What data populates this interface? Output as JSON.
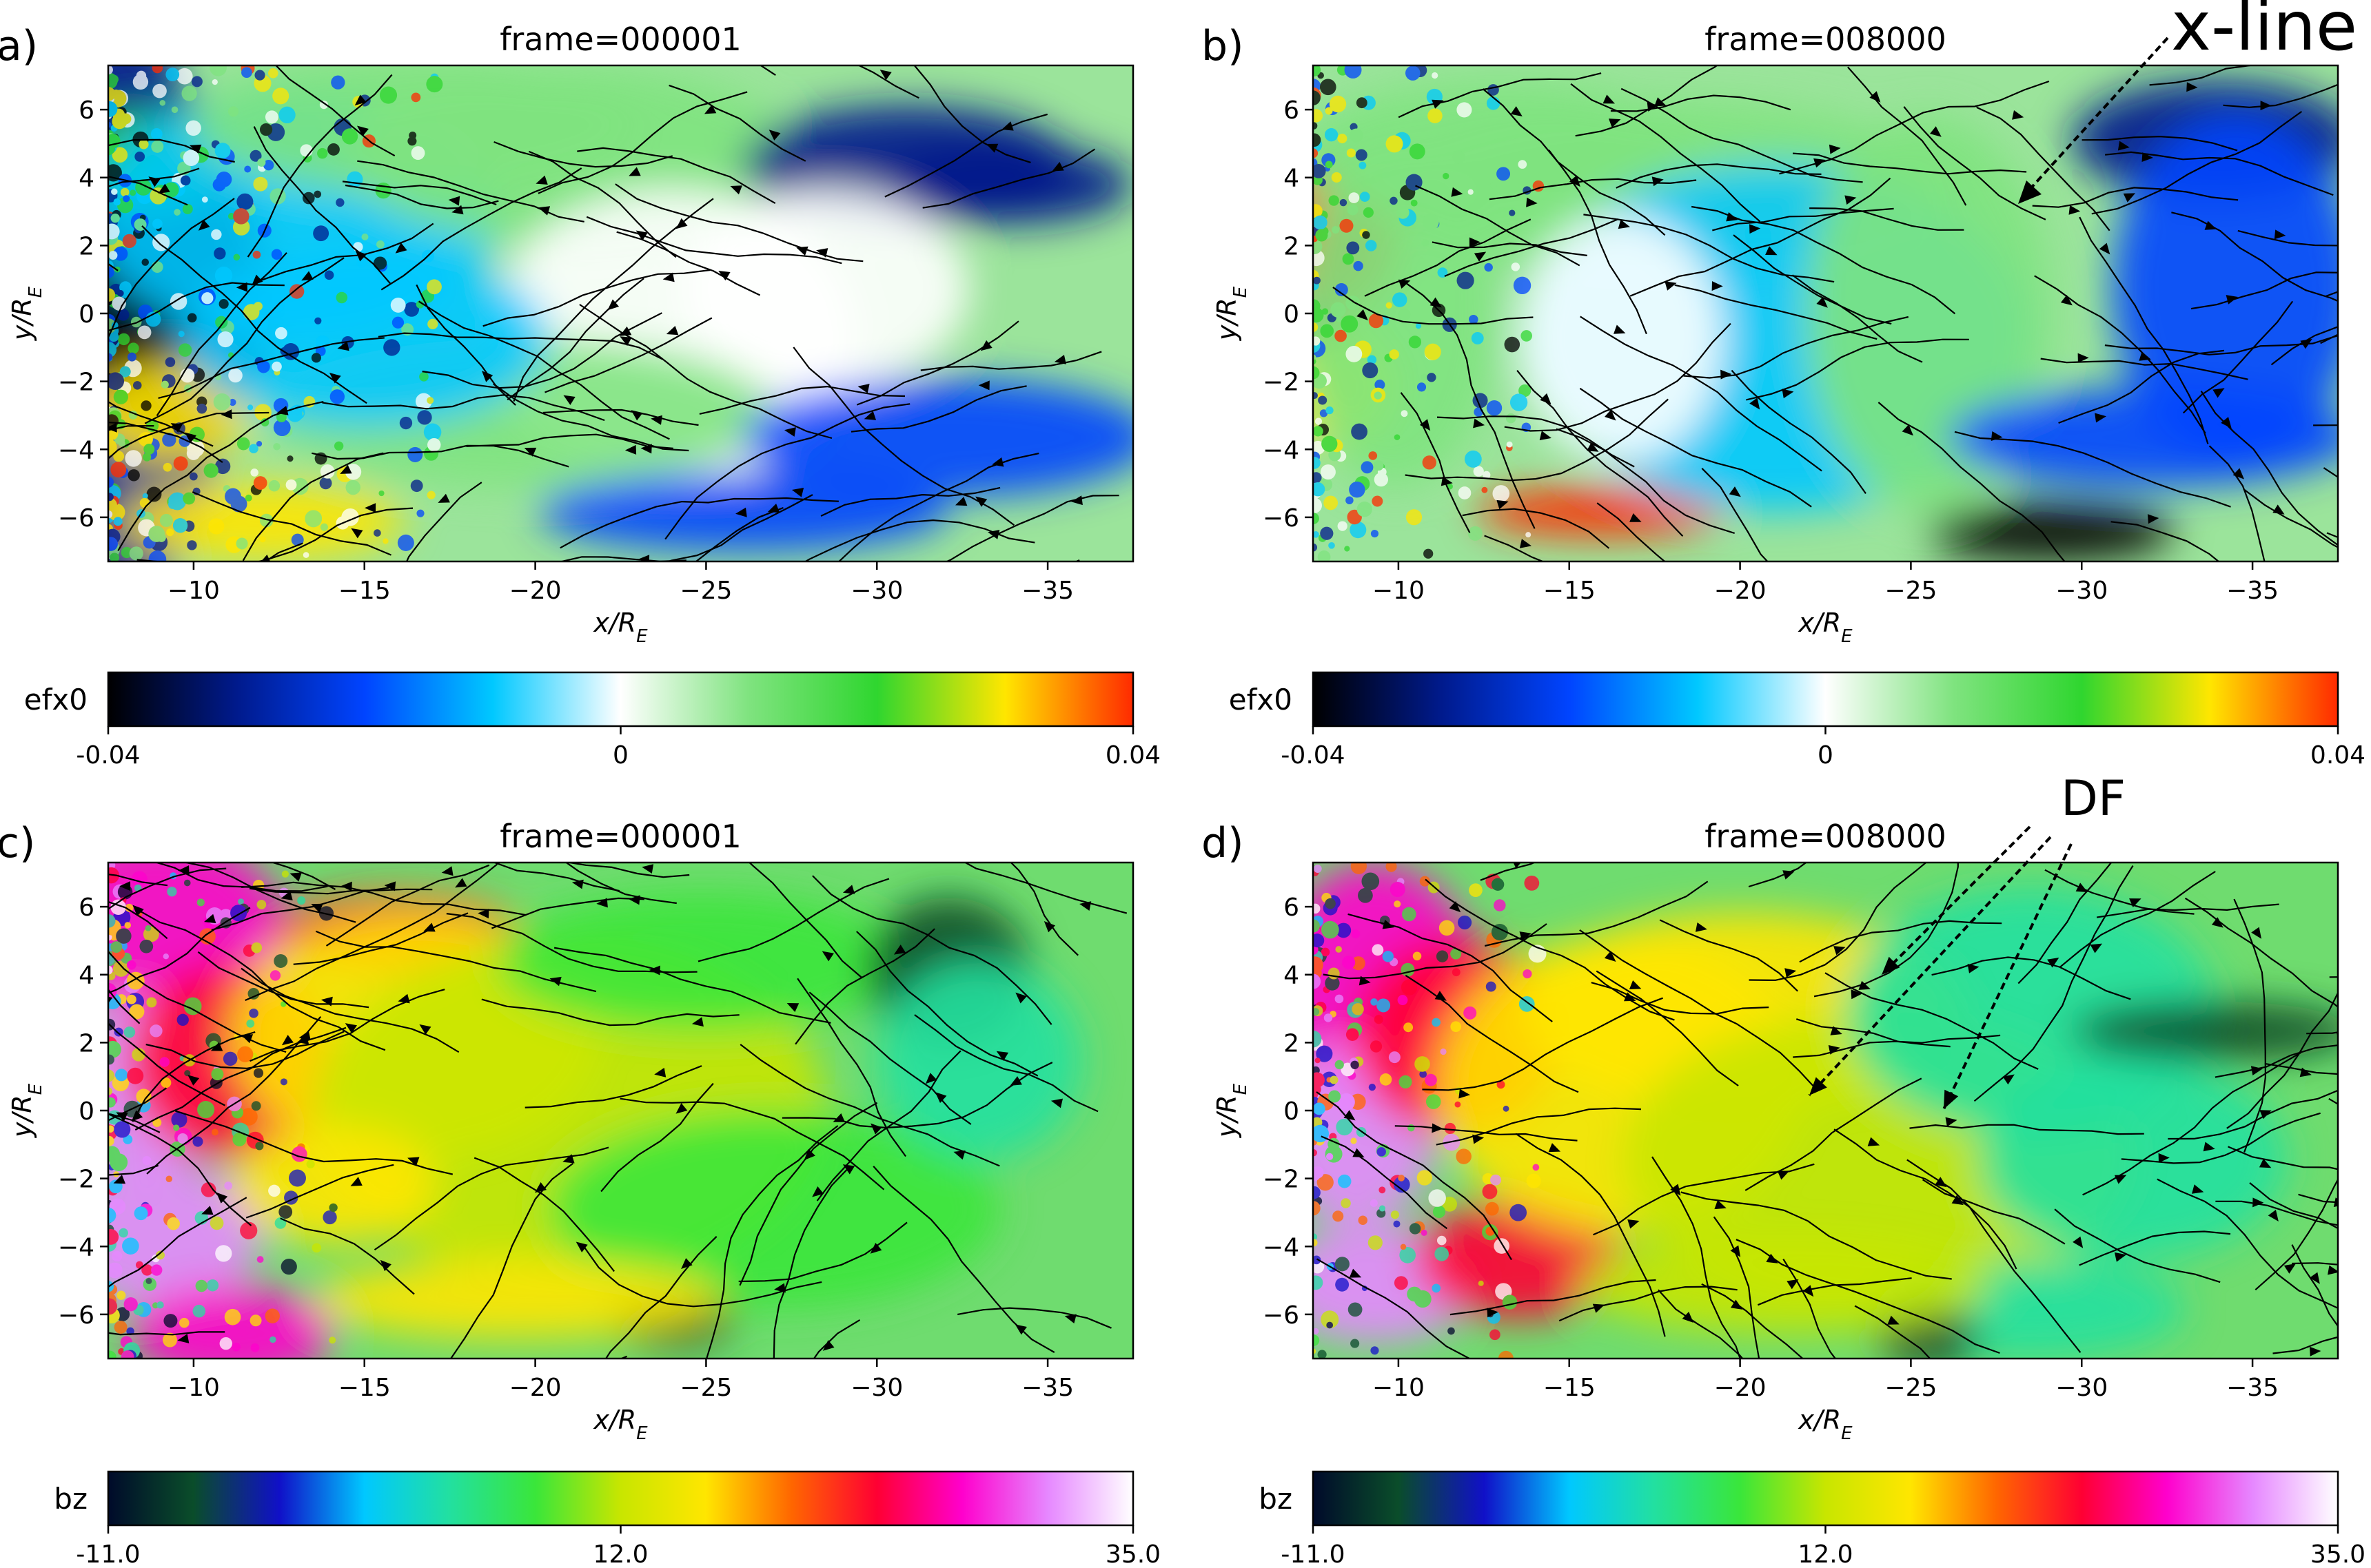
{
  "chart_data": [
    {
      "type": "heatmap",
      "panel_label": "a)",
      "title": "frame=000001",
      "xlabel": "x/R",
      "xlabel_sub": "E",
      "ylabel": "y/R",
      "ylabel_sub": "E",
      "xlim": [
        -7.5,
        -37.5
      ],
      "ylim": [
        -7.3,
        7.3
      ],
      "xticks": [
        -10,
        -15,
        -20,
        -25,
        -30,
        -35
      ],
      "yticks": [
        6,
        4,
        2,
        0,
        -2,
        -4,
        -6
      ],
      "colorbar": {
        "label": "efx0",
        "min": -0.04,
        "max": 0.04,
        "ticks": [
          "-0.04",
          "0",
          "0.04"
        ],
        "colormap": [
          "#000000",
          "#001a8c",
          "#0044ff",
          "#00c8ff",
          "#ffffff",
          "#7fe37f",
          "#2fd62f",
          "#ffe600",
          "#ff2a00"
        ]
      },
      "annotations": []
    },
    {
      "type": "heatmap",
      "panel_label": "b)",
      "title": "frame=008000",
      "xlabel": "x/R",
      "xlabel_sub": "E",
      "ylabel": "y/R",
      "ylabel_sub": "E",
      "xlim": [
        -7.5,
        -37.5
      ],
      "ylim": [
        -7.3,
        7.3
      ],
      "xticks": [
        -10,
        -15,
        -20,
        -25,
        -30,
        -35
      ],
      "yticks": [
        6,
        4,
        2,
        0,
        -2,
        -4,
        -6
      ],
      "colorbar": {
        "label": "efx0",
        "min": -0.04,
        "max": 0.04,
        "ticks": [
          "-0.04",
          "0",
          "0.04"
        ],
        "colormap": [
          "#000000",
          "#001a8c",
          "#0044ff",
          "#00c8ff",
          "#ffffff",
          "#7fe37f",
          "#2fd62f",
          "#ffe600",
          "#ff2a00"
        ]
      },
      "annotations": [
        {
          "text": "x-line"
        }
      ]
    },
    {
      "type": "heatmap",
      "panel_label": "c)",
      "title": "frame=000001",
      "xlabel": "x/R",
      "xlabel_sub": "E",
      "ylabel": "y/R",
      "ylabel_sub": "E",
      "xlim": [
        -7.5,
        -37.5
      ],
      "ylim": [
        -7.3,
        7.3
      ],
      "xticks": [
        -10,
        -15,
        -20,
        -25,
        -30,
        -35
      ],
      "yticks": [
        6,
        4,
        2,
        0,
        -2,
        -4,
        -6
      ],
      "colorbar": {
        "label": "bz",
        "min": -11.0,
        "max": 35.0,
        "ticks": [
          "-11.0",
          "12.0",
          "35.0"
        ],
        "colormap": [
          "#000a2a",
          "#0a4d2a",
          "#1010c8",
          "#00c8ff",
          "#22e0a0",
          "#3ae63a",
          "#c8e600",
          "#ffe600",
          "#ff6600",
          "#ff0033",
          "#ff00cc",
          "#e688ff",
          "#ffffff"
        ]
      },
      "annotations": []
    },
    {
      "type": "heatmap",
      "panel_label": "d)",
      "title": "frame=008000",
      "xlabel": "x/R",
      "xlabel_sub": "E",
      "ylabel": "y/R",
      "ylabel_sub": "E",
      "xlim": [
        -7.5,
        -37.5
      ],
      "ylim": [
        -7.3,
        7.3
      ],
      "xticks": [
        -10,
        -15,
        -20,
        -25,
        -30,
        -35
      ],
      "yticks": [
        6,
        4,
        2,
        0,
        -2,
        -4,
        -6
      ],
      "colorbar": {
        "label": "bz",
        "min": -11.0,
        "max": 35.0,
        "ticks": [
          "-11.0",
          "12.0",
          "35.0"
        ],
        "colormap": [
          "#000a2a",
          "#0a4d2a",
          "#1010c8",
          "#00c8ff",
          "#22e0a0",
          "#3ae63a",
          "#c8e600",
          "#ffe600",
          "#ff6600",
          "#ff0033",
          "#ff00cc",
          "#e688ff",
          "#ffffff"
        ]
      },
      "annotations": [
        {
          "text": "DF"
        }
      ]
    }
  ]
}
